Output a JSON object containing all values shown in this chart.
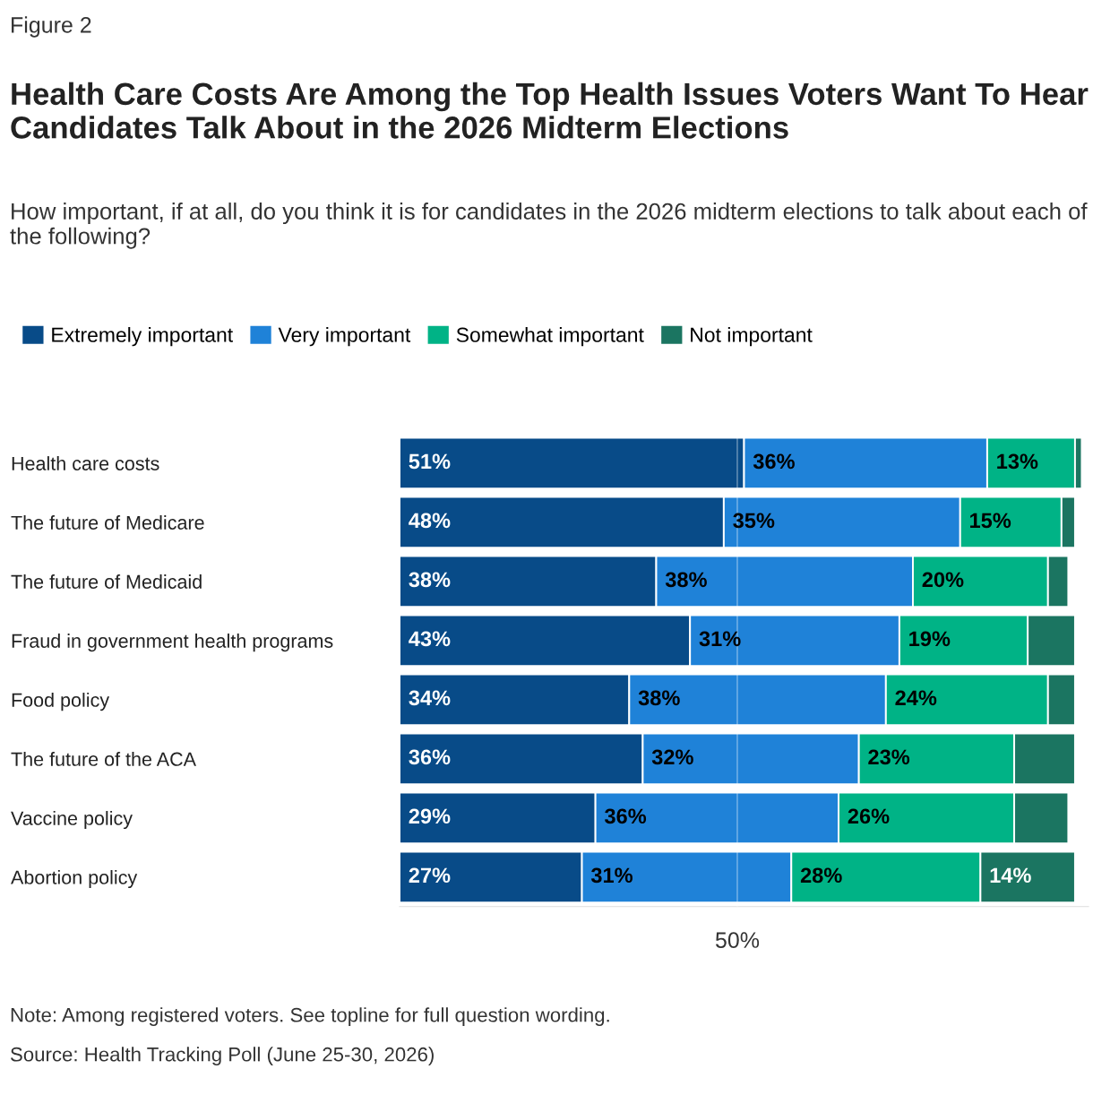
{
  "chart_data": {
    "type": "bar",
    "orientation": "horizontal",
    "stacked": true,
    "title": "Health Care Costs Are Among the Top Health Issues Voters Want To Hear Candidates Talk About in the 2026 Midterm Elections",
    "subtitle": "How important, if at all, do you think it is for candidates in the 2026 midterm elections to talk about each of the following?",
    "categories": [
      "Health care costs",
      "The future of Medicare",
      "The future of Medicaid",
      "Fraud in government health programs",
      "Food policy",
      "The future of the ACA",
      "Vaccine policy",
      "Abortion policy"
    ],
    "series": [
      {
        "name": "Extremely important",
        "color": "#084b88",
        "values": [
          51,
          48,
          38,
          43,
          34,
          36,
          29,
          27
        ],
        "value_labels": [
          "51%",
          "48%",
          "38%",
          "43%",
          "34%",
          "36%",
          "29%",
          "27%"
        ]
      },
      {
        "name": "Very important",
        "color": "#1f82d8",
        "values": [
          36,
          35,
          38,
          31,
          38,
          32,
          36,
          31
        ],
        "value_labels": [
          "36%",
          "35%",
          "38%",
          "31%",
          "38%",
          "32%",
          "36%",
          "31%"
        ]
      },
      {
        "name": "Somewhat important",
        "color": "#00b386",
        "values": [
          13,
          15,
          20,
          19,
          24,
          23,
          26,
          28
        ],
        "value_labels": [
          "13%",
          "15%",
          "20%",
          "19%",
          "24%",
          "23%",
          "26%",
          "28%"
        ]
      },
      {
        "name": "Not important",
        "color": "#1b7561",
        "values": [
          1,
          2,
          3,
          7,
          4,
          9,
          8,
          14
        ],
        "value_labels": [
          null,
          null,
          null,
          null,
          null,
          null,
          null,
          "14%"
        ]
      }
    ],
    "xlim": [
      0,
      102
    ],
    "xticks": [
      {
        "value": 50,
        "label": "50%"
      }
    ],
    "grid": "x",
    "legend": "top left",
    "annotations": [
      "Figure 2",
      "Note: Among registered voters. See topline for full question wording.",
      "Source: Health Tracking Poll (June 25-30, 2026)"
    ]
  }
}
